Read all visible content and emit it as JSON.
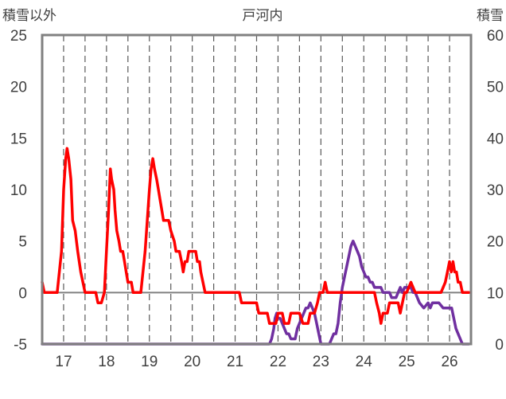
{
  "chart_data": {
    "type": "line",
    "title": "戸河内",
    "ylabel_left": "積雪以外",
    "ylabel_right": "積雪",
    "x": [
      16.5,
      26.5
    ],
    "xticks": [
      "17",
      "18",
      "19",
      "20",
      "21",
      "22",
      "23",
      "24",
      "25",
      "26"
    ],
    "ylim_left": [
      -5,
      25
    ],
    "yticks_left": [
      "25",
      "20",
      "15",
      "10",
      "5",
      "0",
      "-5"
    ],
    "ylim_right": [
      0,
      60
    ],
    "yticks_right": [
      "60",
      "50",
      "40",
      "30",
      "20",
      "10",
      "0"
    ],
    "grid": {
      "vertical_dashed": true,
      "horizontal": false
    },
    "zero_line": 0,
    "series": [
      {
        "axis": "left",
        "color": "#ff0000",
        "points": [
          [
            16.5,
            1
          ],
          [
            16.55,
            0
          ],
          [
            16.7,
            0
          ],
          [
            16.85,
            0
          ],
          [
            16.95,
            4
          ],
          [
            17.0,
            10
          ],
          [
            17.05,
            13
          ],
          [
            17.08,
            14
          ],
          [
            17.12,
            13
          ],
          [
            17.17,
            11
          ],
          [
            17.21,
            7
          ],
          [
            17.27,
            6
          ],
          [
            17.33,
            4
          ],
          [
            17.4,
            2
          ],
          [
            17.45,
            1
          ],
          [
            17.5,
            0
          ],
          [
            17.6,
            0
          ],
          [
            17.75,
            0
          ],
          [
            17.8,
            -1
          ],
          [
            17.88,
            -1
          ],
          [
            17.95,
            0
          ],
          [
            18.0,
            4
          ],
          [
            18.05,
            8
          ],
          [
            18.09,
            12
          ],
          [
            18.12,
            11
          ],
          [
            18.17,
            10
          ],
          [
            18.2,
            8
          ],
          [
            18.24,
            6
          ],
          [
            18.29,
            5
          ],
          [
            18.33,
            4
          ],
          [
            18.38,
            4
          ],
          [
            18.42,
            3
          ],
          [
            18.46,
            2
          ],
          [
            18.5,
            1
          ],
          [
            18.58,
            1
          ],
          [
            18.62,
            0
          ],
          [
            18.75,
            0
          ],
          [
            18.8,
            0
          ],
          [
            18.9,
            4
          ],
          [
            18.95,
            7
          ],
          [
            19.0,
            10
          ],
          [
            19.04,
            12
          ],
          [
            19.08,
            13
          ],
          [
            19.12,
            12
          ],
          [
            19.17,
            11
          ],
          [
            19.21,
            10
          ],
          [
            19.25,
            9
          ],
          [
            19.29,
            8
          ],
          [
            19.33,
            7
          ],
          [
            19.45,
            7
          ],
          [
            19.5,
            6
          ],
          [
            19.58,
            5
          ],
          [
            19.62,
            4
          ],
          [
            19.7,
            4
          ],
          [
            19.75,
            3
          ],
          [
            19.79,
            2
          ],
          [
            19.83,
            3
          ],
          [
            19.88,
            3
          ],
          [
            19.92,
            4
          ],
          [
            20.08,
            4
          ],
          [
            20.12,
            3
          ],
          [
            20.17,
            3
          ],
          [
            20.2,
            2
          ],
          [
            20.25,
            1
          ],
          [
            20.3,
            0
          ],
          [
            21.0,
            0
          ],
          [
            21.1,
            0
          ],
          [
            21.15,
            -1
          ],
          [
            21.5,
            -1
          ],
          [
            21.55,
            -2
          ],
          [
            21.75,
            -2
          ],
          [
            21.8,
            -3
          ],
          [
            21.95,
            -3
          ],
          [
            22.0,
            -2
          ],
          [
            22.1,
            -2
          ],
          [
            22.15,
            -3
          ],
          [
            22.25,
            -3
          ],
          [
            22.3,
            -2
          ],
          [
            22.5,
            -2
          ],
          [
            22.58,
            -3
          ],
          [
            22.7,
            -3
          ],
          [
            22.75,
            -2
          ],
          [
            22.85,
            -2
          ],
          [
            22.92,
            -1
          ],
          [
            22.97,
            0
          ],
          [
            23.05,
            0
          ],
          [
            23.1,
            1
          ],
          [
            23.15,
            0
          ],
          [
            23.6,
            0
          ],
          [
            23.8,
            0
          ],
          [
            23.85,
            0
          ],
          [
            23.95,
            0
          ],
          [
            24.1,
            0
          ],
          [
            24.25,
            0
          ],
          [
            24.3,
            -1
          ],
          [
            24.36,
            -2
          ],
          [
            24.4,
            -3
          ],
          [
            24.45,
            -2
          ],
          [
            24.55,
            -2
          ],
          [
            24.6,
            -1
          ],
          [
            24.7,
            -1
          ],
          [
            24.8,
            -1
          ],
          [
            24.85,
            -2
          ],
          [
            24.9,
            -1
          ],
          [
            24.95,
            0
          ],
          [
            25.0,
            0
          ],
          [
            25.1,
            1
          ],
          [
            25.2,
            0
          ],
          [
            25.3,
            0
          ],
          [
            25.4,
            0
          ],
          [
            25.6,
            0
          ],
          [
            25.8,
            0
          ],
          [
            25.9,
            1
          ],
          [
            25.95,
            2
          ],
          [
            26.0,
            3
          ],
          [
            26.04,
            2
          ],
          [
            26.08,
            3
          ],
          [
            26.12,
            2
          ],
          [
            26.16,
            2
          ],
          [
            26.2,
            1
          ],
          [
            26.25,
            1
          ],
          [
            26.3,
            0
          ],
          [
            26.45,
            0
          ]
        ]
      },
      {
        "axis": "right",
        "color": "#7030a0",
        "points": [
          [
            16.5,
            0
          ],
          [
            21.8,
            0
          ],
          [
            21.85,
            1
          ],
          [
            21.9,
            3
          ],
          [
            21.93,
            5
          ],
          [
            21.97,
            6
          ],
          [
            22.0,
            5
          ],
          [
            22.05,
            5
          ],
          [
            22.1,
            4
          ],
          [
            22.15,
            3
          ],
          [
            22.2,
            2
          ],
          [
            22.25,
            2
          ],
          [
            22.3,
            1
          ],
          [
            22.35,
            1
          ],
          [
            22.4,
            1
          ],
          [
            22.45,
            3
          ],
          [
            22.5,
            4
          ],
          [
            22.55,
            5
          ],
          [
            22.6,
            6
          ],
          [
            22.65,
            7
          ],
          [
            22.7,
            7
          ],
          [
            22.75,
            8
          ],
          [
            22.8,
            7
          ],
          [
            22.85,
            6
          ],
          [
            22.9,
            4
          ],
          [
            22.95,
            2
          ],
          [
            23.0,
            0
          ],
          [
            23.2,
            0
          ],
          [
            23.25,
            1
          ],
          [
            23.3,
            2
          ],
          [
            23.35,
            2
          ],
          [
            23.4,
            4
          ],
          [
            23.45,
            8
          ],
          [
            23.5,
            11
          ],
          [
            23.55,
            13
          ],
          [
            23.6,
            15
          ],
          [
            23.65,
            17
          ],
          [
            23.7,
            19
          ],
          [
            23.75,
            20
          ],
          [
            23.8,
            19
          ],
          [
            23.85,
            18
          ],
          [
            23.9,
            17
          ],
          [
            23.95,
            15
          ],
          [
            24.0,
            14
          ],
          [
            24.05,
            13
          ],
          [
            24.1,
            13
          ],
          [
            24.15,
            12
          ],
          [
            24.2,
            12
          ],
          [
            24.25,
            11
          ],
          [
            24.4,
            11
          ],
          [
            24.45,
            10
          ],
          [
            24.6,
            10
          ],
          [
            24.65,
            9
          ],
          [
            24.75,
            9
          ],
          [
            24.8,
            10
          ],
          [
            24.85,
            11
          ],
          [
            24.9,
            10
          ],
          [
            24.95,
            11
          ],
          [
            25.1,
            11
          ],
          [
            25.15,
            10
          ],
          [
            25.2,
            10
          ],
          [
            25.25,
            9
          ],
          [
            25.3,
            8
          ],
          [
            25.4,
            7
          ],
          [
            25.5,
            8
          ],
          [
            25.55,
            7
          ],
          [
            25.6,
            8
          ],
          [
            25.75,
            8
          ],
          [
            25.85,
            7
          ],
          [
            26.05,
            7
          ],
          [
            26.1,
            5
          ],
          [
            26.15,
            3
          ],
          [
            26.2,
            2
          ],
          [
            26.25,
            1
          ],
          [
            26.3,
            0
          ],
          [
            26.45,
            0
          ]
        ]
      }
    ]
  }
}
